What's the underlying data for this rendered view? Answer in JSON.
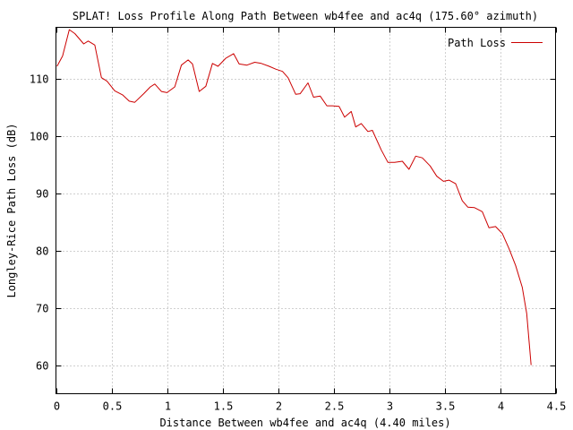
{
  "chart_data": {
    "type": "line",
    "title": "SPLAT! Loss Profile Along Path Between wb4fee and ac4q (175.60° azimuth)",
    "xlabel": "Distance Between wb4fee and ac4q (4.40 miles)",
    "ylabel": "Longley-Rice Path Loss (dB)",
    "xlim": [
      0,
      4.5
    ],
    "ylim": [
      55,
      119
    ],
    "x_ticks": [
      0,
      0.5,
      1,
      1.5,
      2,
      2.5,
      3,
      3.5,
      4,
      4.5
    ],
    "x_tick_labels": [
      "0",
      "0.5",
      "1",
      "1.5",
      "2",
      "2.5",
      "3",
      "3.5",
      "4",
      "4.5"
    ],
    "y_ticks": [
      60,
      70,
      80,
      90,
      100,
      110
    ],
    "y_tick_labels": [
      "60",
      "70",
      "80",
      "90",
      "100",
      "110"
    ],
    "grid": true,
    "legend_position": "top-right",
    "series": [
      {
        "name": "Path Loss",
        "color": "#cc0000",
        "x": [
          0.01,
          0.06,
          0.12,
          0.17,
          0.25,
          0.29,
          0.35,
          0.41,
          0.46,
          0.53,
          0.6,
          0.66,
          0.71,
          0.79,
          0.85,
          0.89,
          0.95,
          1.0,
          1.07,
          1.13,
          1.19,
          1.23,
          1.29,
          1.35,
          1.41,
          1.46,
          1.53,
          1.6,
          1.65,
          1.72,
          1.79,
          1.85,
          1.92,
          1.98,
          2.04,
          2.09,
          2.16,
          2.2,
          2.27,
          2.32,
          2.38,
          2.44,
          2.49,
          2.55,
          2.6,
          2.66,
          2.7,
          2.75,
          2.81,
          2.85,
          2.93,
          2.99,
          3.05,
          3.12,
          3.18,
          3.24,
          3.3,
          3.37,
          3.43,
          3.49,
          3.54,
          3.6,
          3.66,
          3.71,
          3.77,
          3.84,
          3.9,
          3.96,
          4.02,
          4.08,
          4.14,
          4.2,
          4.24,
          4.28
        ],
        "y": [
          112.2,
          114.0,
          118.6,
          117.9,
          116.1,
          116.6,
          115.9,
          110.2,
          109.6,
          107.9,
          107.2,
          106.1,
          105.9,
          107.4,
          108.6,
          109.1,
          107.8,
          107.6,
          108.6,
          112.4,
          113.3,
          112.6,
          107.8,
          108.7,
          112.7,
          112.2,
          113.6,
          114.4,
          112.6,
          112.4,
          112.9,
          112.7,
          112.2,
          111.7,
          111.3,
          110.2,
          107.3,
          107.4,
          109.3,
          106.8,
          107.0,
          105.3,
          105.3,
          105.2,
          103.3,
          104.3,
          101.6,
          102.2,
          100.8,
          101.0,
          97.6,
          95.4,
          95.4,
          95.6,
          94.2,
          96.5,
          96.2,
          94.8,
          93.0,
          92.1,
          92.3,
          91.7,
          88.7,
          87.6,
          87.5,
          86.8,
          84.0,
          84.2,
          83.0,
          80.4,
          77.4,
          73.6,
          69.0,
          60.0
        ]
      }
    ]
  }
}
